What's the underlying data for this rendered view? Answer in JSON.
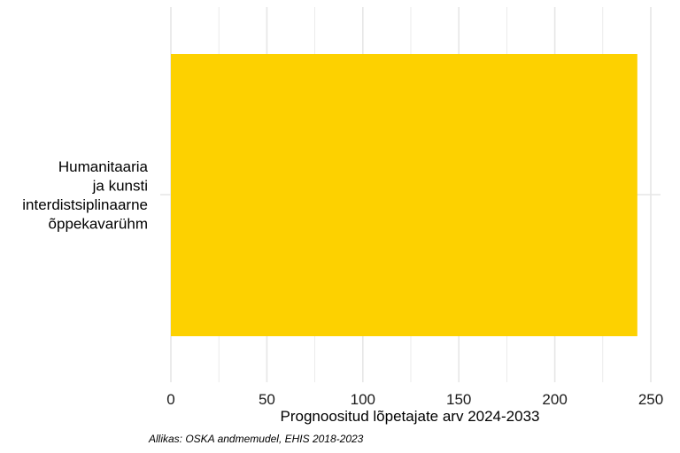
{
  "chart_data": {
    "type": "bar",
    "orientation": "horizontal",
    "categories": [
      "Humanitaaria ja kunsti interdistsiplinaarne õppekavarühm"
    ],
    "category_label_lines": [
      [
        "Humanitaaria",
        "ja kunsti",
        "interdistsiplinaarne",
        "õppekavarühm"
      ]
    ],
    "values": [
      243
    ],
    "xlabel": "Prognoositud lõpetajate arv 2024-2033",
    "ylabel": "",
    "xlim": [
      0,
      255
    ],
    "xticks": [
      0,
      50,
      100,
      150,
      200,
      250
    ],
    "grid": true,
    "legend": "none",
    "bar_color": "#FDD100",
    "grid_color": "#E6E6E6"
  },
  "caption": "Allikas: OSKA andmemudel, EHIS 2018-2023"
}
